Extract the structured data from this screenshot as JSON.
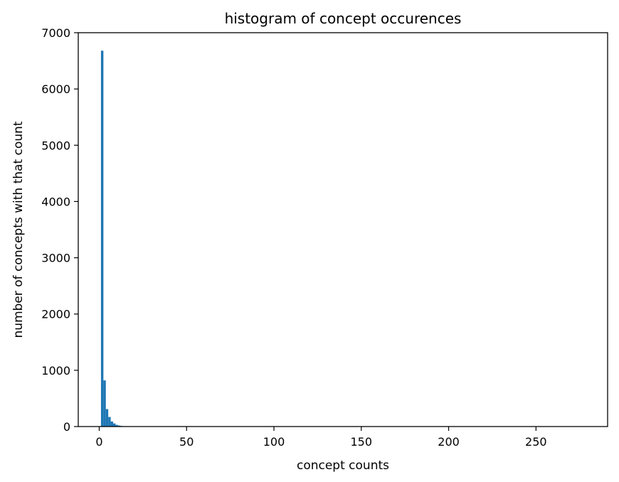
{
  "chart_data": {
    "type": "bar",
    "title": "histogram of concept occurences",
    "xlabel": "concept counts",
    "ylabel": "number of concepts with that count",
    "xlim": [
      -12,
      291
    ],
    "ylim": [
      0,
      7000
    ],
    "xticks": [
      0,
      50,
      100,
      150,
      200,
      250
    ],
    "yticks": [
      0,
      1000,
      2000,
      3000,
      4000,
      5000,
      6000,
      7000
    ],
    "bin_width": 1.39,
    "series": [
      {
        "color": "#1f77b4",
        "bins": [
          {
            "x0": 1.0,
            "value": 6680
          },
          {
            "x0": 2.39,
            "value": 820
          },
          {
            "x0": 3.78,
            "value": 310
          },
          {
            "x0": 5.17,
            "value": 170
          },
          {
            "x0": 6.56,
            "value": 90
          },
          {
            "x0": 7.95,
            "value": 55
          },
          {
            "x0": 9.34,
            "value": 30
          },
          {
            "x0": 10.73,
            "value": 18
          },
          {
            "x0": 12.12,
            "value": 10
          },
          {
            "x0": 13.51,
            "value": 6
          },
          {
            "x0": 14.9,
            "value": 4
          }
        ]
      }
    ],
    "grid": false,
    "legend": "none"
  }
}
